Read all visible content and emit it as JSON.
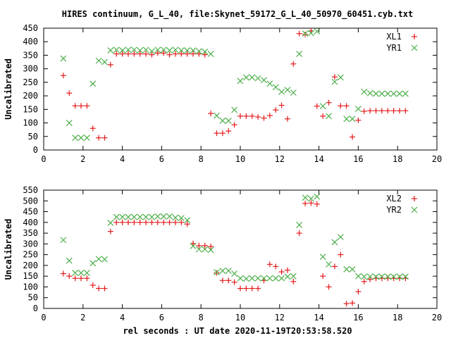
{
  "title": "HIRES continuum, G_L_40, file:Skynet_59172_G_L_40_50970_60451.cyb.txt",
  "xlabel": "rel seconds : UT date 2020-11-19T20:53:58.520",
  "chart_data": [
    {
      "type": "scatter",
      "ylabel": "Uncalibrated",
      "xlim": [
        0,
        20
      ],
      "ylim": [
        0,
        450
      ],
      "xticks": [
        0,
        2,
        4,
        6,
        8,
        10,
        12,
        14,
        16,
        18,
        20
      ],
      "yticks": [
        0,
        50,
        100,
        150,
        200,
        250,
        300,
        350,
        400,
        450
      ],
      "legend_position": "top-right",
      "series": [
        {
          "name": "XL1",
          "color": "#e41a1c",
          "marker": "plus",
          "x": [
            1.0,
            1.3,
            1.6,
            1.9,
            2.2,
            2.5,
            2.8,
            3.1,
            3.4,
            3.7,
            4.0,
            4.3,
            4.6,
            4.9,
            5.2,
            5.5,
            5.8,
            6.1,
            6.4,
            6.7,
            7.0,
            7.3,
            7.6,
            7.9,
            8.2,
            8.5,
            8.8,
            9.1,
            9.4,
            9.7,
            10.0,
            10.3,
            10.6,
            10.9,
            11.2,
            11.5,
            11.8,
            12.1,
            12.4,
            12.7,
            13.0,
            13.3,
            13.6,
            13.9,
            14.2,
            14.5,
            14.8,
            15.1,
            15.4,
            15.7,
            16.0,
            16.3,
            16.6,
            16.9,
            17.2,
            17.5,
            17.8,
            18.1,
            18.4
          ],
          "y": [
            275,
            210,
            163,
            163,
            163,
            80,
            45,
            45,
            315,
            355,
            355,
            355,
            355,
            355,
            355,
            352,
            358,
            358,
            352,
            355,
            355,
            355,
            355,
            355,
            352,
            135,
            62,
            62,
            70,
            93,
            125,
            125,
            125,
            122,
            118,
            127,
            148,
            165,
            115,
            318,
            430,
            427,
            440,
            162,
            125,
            175,
            270,
            163,
            163,
            48,
            110,
            143,
            145,
            145,
            145,
            145,
            145,
            145,
            145
          ]
        },
        {
          "name": "YR1",
          "color": "#4daf4a",
          "marker": "cross",
          "x": [
            1.0,
            1.3,
            1.6,
            1.9,
            2.2,
            2.5,
            2.8,
            3.1,
            3.4,
            3.7,
            4.0,
            4.3,
            4.6,
            4.9,
            5.2,
            5.5,
            5.8,
            6.1,
            6.4,
            6.7,
            7.0,
            7.3,
            7.6,
            7.9,
            8.2,
            8.5,
            8.8,
            9.1,
            9.4,
            9.7,
            10.0,
            10.3,
            10.6,
            10.9,
            11.2,
            11.5,
            11.8,
            12.1,
            12.4,
            12.7,
            13.0,
            13.3,
            13.6,
            13.9,
            14.2,
            14.5,
            14.8,
            15.1,
            15.4,
            15.7,
            16.0,
            16.3,
            16.6,
            16.9,
            17.2,
            17.5,
            17.8,
            18.1,
            18.4
          ],
          "y": [
            338,
            100,
            45,
            45,
            45,
            245,
            330,
            325,
            368,
            370,
            368,
            370,
            370,
            368,
            370,
            365,
            370,
            370,
            368,
            370,
            368,
            368,
            368,
            365,
            363,
            355,
            127,
            108,
            108,
            148,
            255,
            268,
            268,
            265,
            258,
            245,
            232,
            215,
            222,
            212,
            355,
            430,
            432,
            438,
            162,
            125,
            252,
            268,
            115,
            115,
            152,
            215,
            210,
            208,
            208,
            208,
            208,
            208,
            208
          ]
        }
      ]
    },
    {
      "type": "scatter",
      "ylabel": "Uncalibrated",
      "xlim": [
        0,
        20
      ],
      "ylim": [
        0,
        550
      ],
      "xticks": [
        0,
        2,
        4,
        6,
        8,
        10,
        12,
        14,
        16,
        18,
        20
      ],
      "yticks": [
        0,
        50,
        100,
        150,
        200,
        250,
        300,
        350,
        400,
        450,
        500,
        550
      ],
      "legend_position": "top-right",
      "series": [
        {
          "name": "XL2",
          "color": "#e41a1c",
          "marker": "plus",
          "x": [
            1.0,
            1.3,
            1.6,
            1.9,
            2.2,
            2.5,
            2.8,
            3.1,
            3.4,
            3.7,
            4.0,
            4.3,
            4.6,
            4.9,
            5.2,
            5.5,
            5.8,
            6.1,
            6.4,
            6.7,
            7.0,
            7.3,
            7.6,
            7.9,
            8.2,
            8.5,
            8.8,
            9.1,
            9.4,
            9.7,
            10.0,
            10.3,
            10.6,
            10.9,
            11.2,
            11.5,
            11.8,
            12.1,
            12.4,
            12.7,
            13.0,
            13.3,
            13.6,
            13.9,
            14.2,
            14.5,
            14.8,
            15.1,
            15.4,
            15.7,
            16.0,
            16.3,
            16.6,
            16.9,
            17.2,
            17.5,
            17.8,
            18.1,
            18.4
          ],
          "y": [
            162,
            150,
            140,
            140,
            140,
            108,
            93,
            93,
            358,
            400,
            400,
            400,
            400,
            400,
            400,
            400,
            400,
            400,
            400,
            400,
            400,
            392,
            302,
            292,
            292,
            288,
            165,
            130,
            130,
            122,
            93,
            93,
            93,
            93,
            130,
            205,
            195,
            170,
            178,
            125,
            350,
            488,
            490,
            485,
            150,
            100,
            195,
            250,
            22,
            25,
            78,
            125,
            135,
            140,
            140,
            140,
            140,
            140,
            140
          ]
        },
        {
          "name": "YR2",
          "color": "#4daf4a",
          "marker": "cross",
          "x": [
            1.0,
            1.3,
            1.6,
            1.9,
            2.2,
            2.5,
            2.8,
            3.1,
            3.4,
            3.7,
            4.0,
            4.3,
            4.6,
            4.9,
            5.2,
            5.5,
            5.8,
            6.1,
            6.4,
            6.7,
            7.0,
            7.3,
            7.6,
            7.9,
            8.2,
            8.5,
            8.8,
            9.1,
            9.4,
            9.7,
            10.0,
            10.3,
            10.6,
            10.9,
            11.2,
            11.5,
            11.8,
            12.1,
            12.4,
            12.7,
            13.0,
            13.3,
            13.6,
            13.9,
            14.2,
            14.5,
            14.8,
            15.1,
            15.4,
            15.7,
            16.0,
            16.3,
            16.6,
            16.9,
            17.2,
            17.5,
            17.8,
            18.1,
            18.4
          ],
          "y": [
            318,
            222,
            165,
            165,
            165,
            210,
            230,
            228,
            398,
            425,
            425,
            425,
            425,
            425,
            425,
            425,
            428,
            428,
            428,
            422,
            420,
            410,
            290,
            275,
            275,
            272,
            168,
            175,
            175,
            162,
            140,
            138,
            140,
            140,
            140,
            140,
            140,
            140,
            148,
            150,
            388,
            515,
            510,
            520,
            240,
            205,
            308,
            332,
            182,
            182,
            150,
            148,
            148,
            148,
            148,
            148,
            148,
            148,
            148
          ]
        }
      ]
    }
  ]
}
